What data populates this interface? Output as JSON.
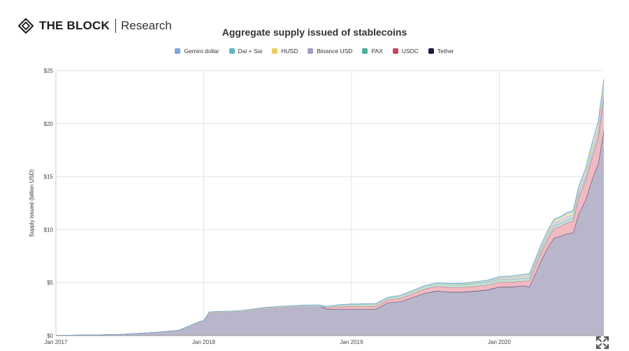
{
  "brand": {
    "name": "THE BLOCK",
    "sub": "Research"
  },
  "chart_data": {
    "type": "area",
    "stacked": true,
    "title": "Aggregate supply issued of stablecoins",
    "ylabel": "Supply issued (billion USD)",
    "xlabel": "",
    "x_tick_labels": [
      "Jan 2017",
      "Jan 2018",
      "Jan 2019",
      "Jan 2020"
    ],
    "y_tick_labels": [
      "$0",
      "$5",
      "$10",
      "$15",
      "$20",
      "$25"
    ],
    "ylim": [
      0,
      25
    ],
    "xlim": [
      "2017-01-01",
      "2020-09-15"
    ],
    "grid": true,
    "legend_position": "top-center",
    "x": [
      "2017-01-01",
      "2017-06-01",
      "2017-09-01",
      "2017-11-01",
      "2017-12-15",
      "2018-01-01",
      "2018-01-15",
      "2018-04-01",
      "2018-06-01",
      "2018-09-01",
      "2018-10-15",
      "2018-11-01",
      "2018-12-01",
      "2019-01-01",
      "2019-03-01",
      "2019-04-01",
      "2019-05-01",
      "2019-06-01",
      "2019-07-01",
      "2019-08-01",
      "2019-09-01",
      "2019-10-01",
      "2019-11-01",
      "2019-12-01",
      "2020-01-01",
      "2020-02-01",
      "2020-03-01",
      "2020-03-15",
      "2020-04-01",
      "2020-04-15",
      "2020-05-01",
      "2020-05-15",
      "2020-06-01",
      "2020-06-15",
      "2020-07-01",
      "2020-07-15",
      "2020-08-01",
      "2020-08-15",
      "2020-09-01",
      "2020-09-15"
    ],
    "series": [
      {
        "name": "Tether",
        "color": "#1c1c44",
        "fill": "#b9b6cb",
        "values": [
          0.01,
          0.1,
          0.3,
          0.5,
          1.2,
          1.4,
          2.2,
          2.3,
          2.6,
          2.8,
          2.8,
          2.5,
          2.5,
          2.5,
          2.5,
          3.1,
          3.2,
          3.6,
          4.0,
          4.2,
          4.1,
          4.1,
          4.2,
          4.3,
          4.6,
          4.6,
          4.7,
          4.6,
          6.0,
          7.2,
          8.4,
          9.2,
          9.4,
          9.6,
          9.7,
          11.5,
          12.8,
          14.5,
          16.2,
          19.3
        ]
      },
      {
        "name": "USDC",
        "color": "#c8475c",
        "fill": "#f0bac2",
        "values": [
          0,
          0,
          0,
          0,
          0,
          0,
          0,
          0,
          0,
          0,
          0,
          0.1,
          0.2,
          0.25,
          0.26,
          0.27,
          0.3,
          0.35,
          0.4,
          0.45,
          0.45,
          0.45,
          0.45,
          0.45,
          0.45,
          0.45,
          0.45,
          0.55,
          0.7,
          0.75,
          0.8,
          0.9,
          0.95,
          1.0,
          1.1,
          1.5,
          1.8,
          2.0,
          2.4,
          3.0
        ]
      },
      {
        "name": "PAX",
        "color": "#4bb39a",
        "fill": "#bfe3d8",
        "values": [
          0,
          0,
          0,
          0,
          0,
          0,
          0,
          0,
          0,
          0,
          0,
          0.06,
          0.1,
          0.13,
          0.14,
          0.15,
          0.17,
          0.19,
          0.2,
          0.22,
          0.23,
          0.24,
          0.25,
          0.25,
          0.25,
          0.25,
          0.25,
          0.25,
          0.25,
          0.25,
          0.26,
          0.26,
          0.26,
          0.27,
          0.27,
          0.28,
          0.3,
          0.35,
          0.4,
          0.45
        ]
      },
      {
        "name": "Binance USD",
        "color": "#a39dc6",
        "fill": "#d9d5ea",
        "values": [
          0,
          0,
          0,
          0,
          0,
          0,
          0,
          0,
          0,
          0,
          0,
          0,
          0,
          0,
          0,
          0,
          0,
          0,
          0,
          0,
          0.02,
          0.04,
          0.06,
          0.08,
          0.1,
          0.15,
          0.18,
          0.2,
          0.22,
          0.25,
          0.3,
          0.3,
          0.3,
          0.35,
          0.35,
          0.4,
          0.45,
          0.5,
          0.55,
          0.6
        ]
      },
      {
        "name": "HUSD",
        "color": "#e7cf5c",
        "fill": "#f5ebbf",
        "values": [
          0,
          0,
          0,
          0,
          0,
          0,
          0,
          0,
          0,
          0,
          0,
          0,
          0,
          0,
          0,
          0,
          0,
          0,
          0,
          0,
          0,
          0,
          0,
          0.02,
          0.05,
          0.07,
          0.08,
          0.1,
          0.12,
          0.14,
          0.15,
          0.17,
          0.18,
          0.2,
          0.2,
          0.22,
          0.25,
          0.3,
          0.35,
          0.4
        ]
      },
      {
        "name": "Dai + Sai",
        "color": "#5fb7c2",
        "fill": "#c3e5ea",
        "values": [
          0,
          0,
          0,
          0,
          0.02,
          0.03,
          0.04,
          0.05,
          0.06,
          0.07,
          0.07,
          0.08,
          0.08,
          0.08,
          0.09,
          0.09,
          0.1,
          0.1,
          0.1,
          0.1,
          0.1,
          0.1,
          0.1,
          0.1,
          0.1,
          0.1,
          0.12,
          0.12,
          0.12,
          0.12,
          0.13,
          0.13,
          0.14,
          0.15,
          0.15,
          0.16,
          0.17,
          0.2,
          0.3,
          0.4
        ]
      },
      {
        "name": "Gemini dollar",
        "color": "#7aa5e0",
        "fill": "#c9dbf3",
        "values": [
          0,
          0,
          0,
          0,
          0,
          0,
          0,
          0,
          0,
          0.01,
          0.02,
          0.02,
          0.03,
          0.03,
          0.03,
          0.02,
          0.02,
          0.02,
          0.02,
          0.02,
          0.02,
          0.02,
          0.02,
          0.02,
          0.02,
          0.02,
          0.02,
          0.02,
          0.02,
          0.02,
          0.02,
          0.02,
          0.02,
          0.02,
          0.02,
          0.02,
          0.02,
          0.03,
          0.03,
          0.03
        ]
      }
    ]
  },
  "legend_order": [
    6,
    5,
    4,
    3,
    2,
    1,
    0
  ],
  "expand_icon": "fullscreen-expand-icon"
}
